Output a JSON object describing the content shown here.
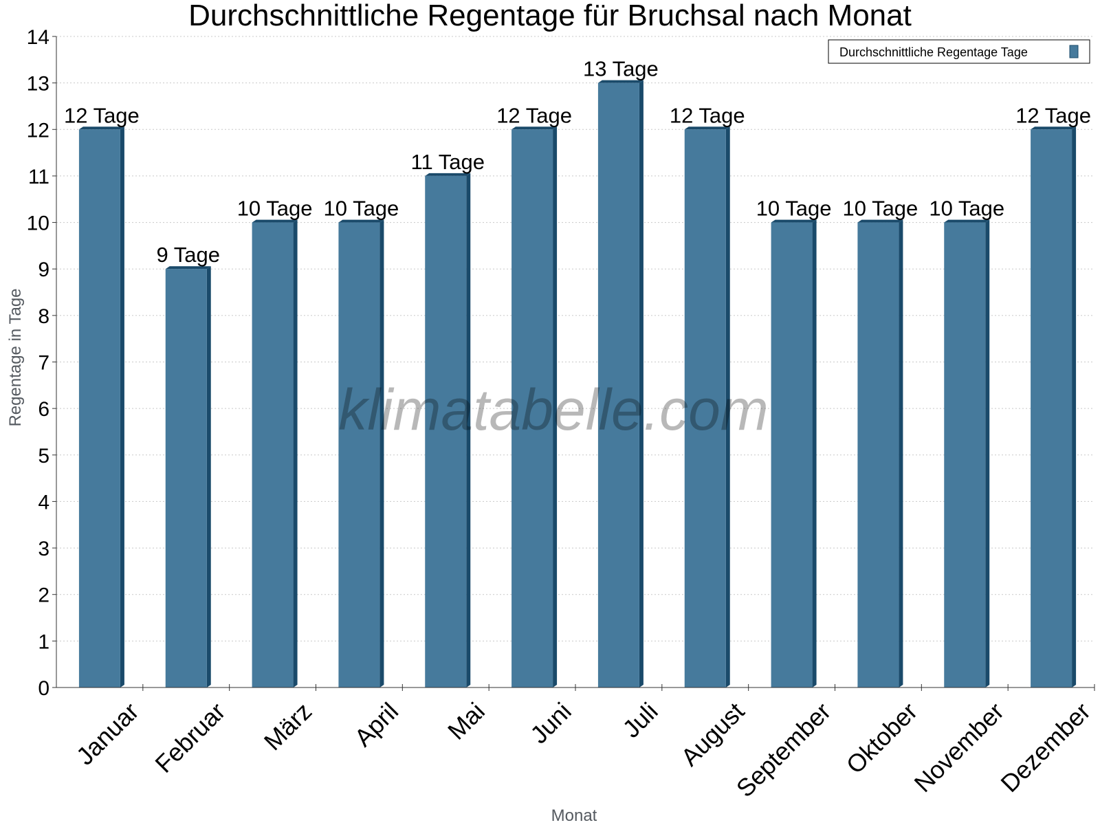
{
  "chart_data": {
    "type": "bar",
    "title": "Durchschnittliche Regentage für Bruchsal nach Monat",
    "xlabel": "Monat",
    "ylabel": "Regentage in Tage",
    "ylim": [
      0,
      14
    ],
    "y_ticks": [
      0,
      1,
      2,
      3,
      4,
      5,
      6,
      7,
      8,
      9,
      10,
      11,
      12,
      13,
      14
    ],
    "grid": true,
    "legend_position": "top-right",
    "categories": [
      "Januar",
      "Februar",
      "März",
      "April",
      "Mai",
      "Juni",
      "Juli",
      "August",
      "September",
      "Oktober",
      "November",
      "Dezember"
    ],
    "series": [
      {
        "name": "Durchschnittliche Regentage Tage",
        "values": [
          12,
          9,
          10,
          10,
          11,
          12,
          13,
          12,
          10,
          10,
          10,
          12
        ],
        "labels": [
          "12 Tage",
          "9 Tage",
          "10 Tage",
          "10 Tage",
          "11 Tage",
          "12 Tage",
          "13 Tage",
          "12 Tage",
          "10 Tage",
          "10 Tage",
          "10 Tage",
          "12 Tage"
        ],
        "color": "#467a9c",
        "side_color": "#1a4a6a"
      }
    ],
    "watermark": "klimatabelle.com"
  }
}
